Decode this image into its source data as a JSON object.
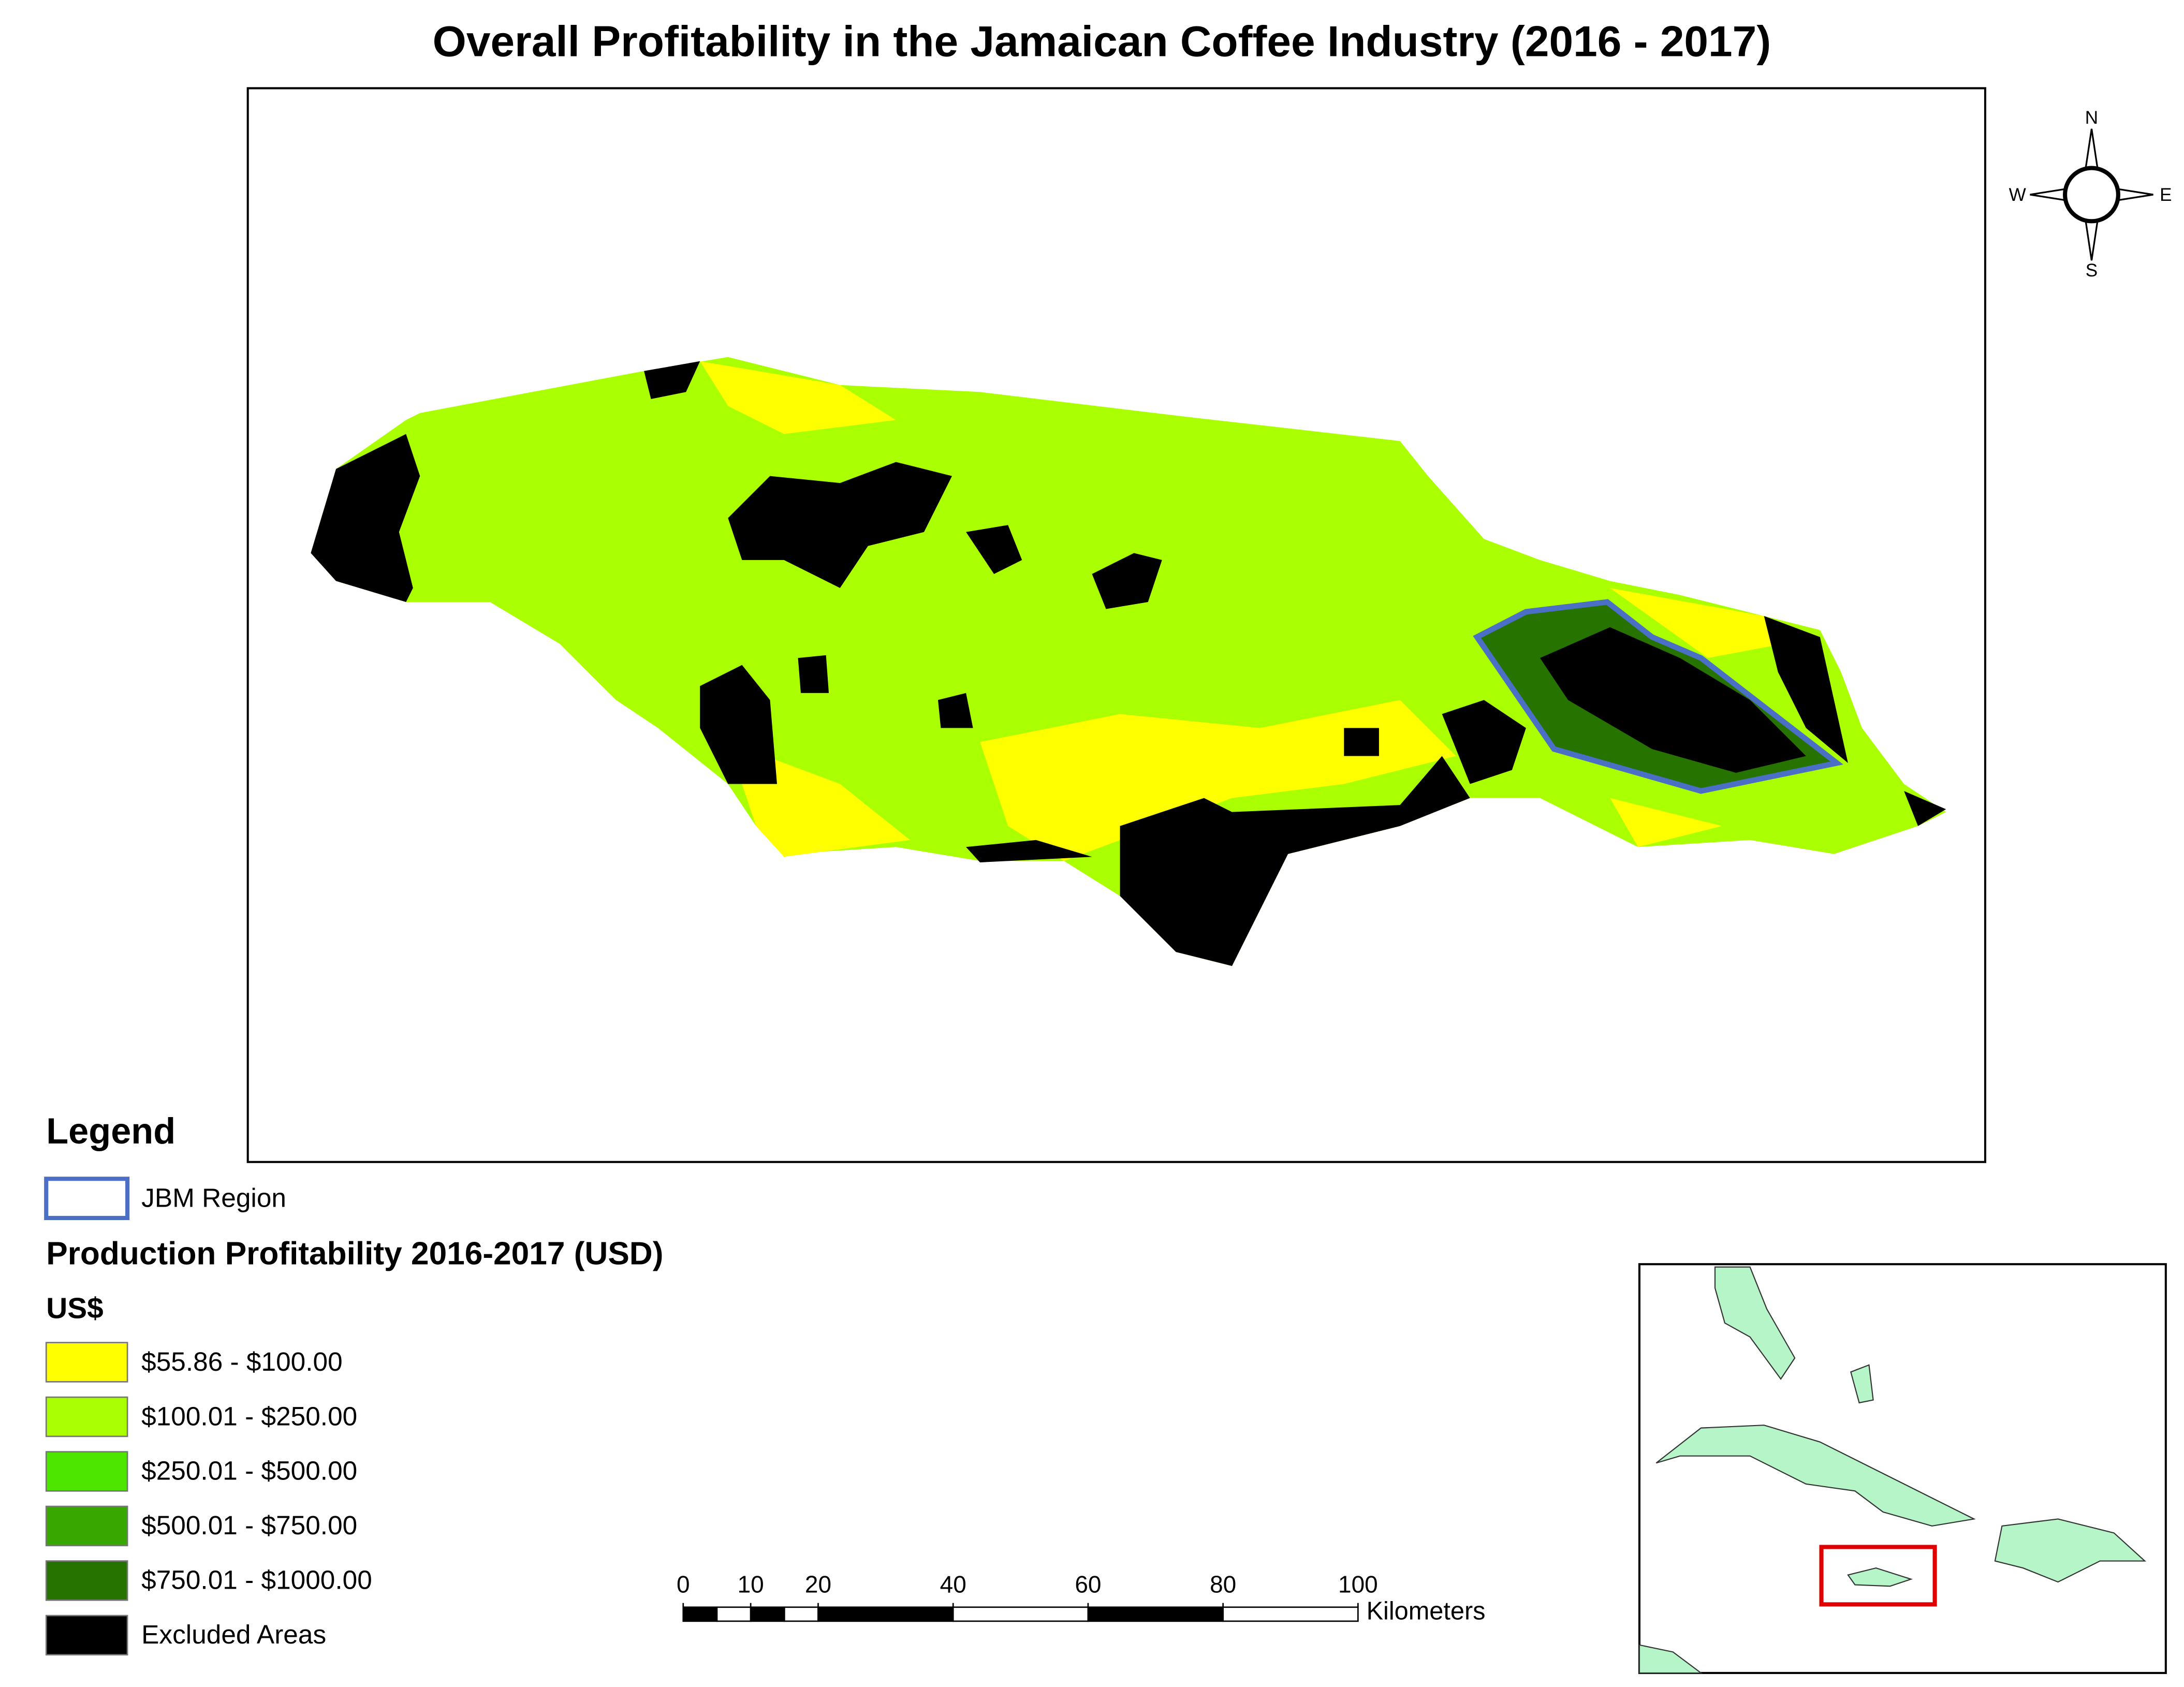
{
  "title": "Overall Profitability in the Jamaican Coffee Industry (2016 - 2017)",
  "compass": {
    "north": "N",
    "south": "S",
    "east": "E",
    "west": "W"
  },
  "legend": {
    "title": "Legend",
    "region": {
      "label": "JBM Region",
      "color": "#4a6fc4"
    },
    "section_title": "Production Profitability 2016-2017 (USD)",
    "unit_label": "US$",
    "classes": [
      {
        "label": "$55.86 - $100.00",
        "color": "#ffff00"
      },
      {
        "label": "$100.01 - $250.00",
        "color": "#aaff00"
      },
      {
        "label": "$250.01 - $500.00",
        "color": "#4ce600"
      },
      {
        "label": "$500.01 - $750.00",
        "color": "#38a800"
      },
      {
        "label": "$750.01 - $1000.00",
        "color": "#267300"
      },
      {
        "label": "Excluded Areas",
        "color": "#000000"
      }
    ]
  },
  "scale_bar": {
    "ticks": [
      0,
      10,
      20,
      40,
      60,
      80,
      100
    ],
    "unit": "Kilometers"
  }
}
